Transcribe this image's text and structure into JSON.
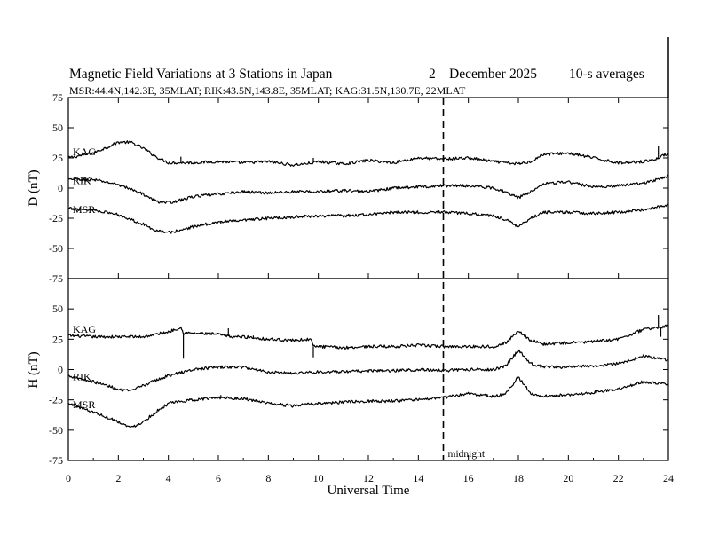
{
  "chart_data": {
    "type": "line",
    "title": {
      "main": "Magnetic Field Variations at 3 Stations in Japan",
      "day": "2",
      "month": "December",
      "year": "2025",
      "averaging": "10-s averages"
    },
    "subtitle": "MSR:44.4N,142.3E, 35MLAT;  RIK:43.5N,143.8E, 35MLAT;  KAG:31.5N,130.7E, 22MLAT",
    "xlabel": "Universal Time",
    "xlim": [
      0,
      24
    ],
    "x_ticks": [
      "0",
      "2",
      "4",
      "6",
      "8",
      "10",
      "12",
      "14",
      "16",
      "18",
      "20",
      "22",
      "24"
    ],
    "midnight_label": "midnight",
    "midnight_ut": 15,
    "panels": [
      {
        "name": "D",
        "ylabel": "D (nT)",
        "ylim": [
          -75,
          75
        ],
        "y_ticks": [
          "75",
          "50",
          "25",
          "0",
          "-25",
          "-50",
          "-75"
        ],
        "series": [
          {
            "name": "KAG",
            "points": [
              [
                0,
                25
              ],
              [
                1,
                29
              ],
              [
                2,
                38
              ],
              [
                2.5,
                38
              ],
              [
                3,
                33
              ],
              [
                3.5,
                26
              ],
              [
                4,
                21
              ],
              [
                4.5,
                21
              ],
              [
                5,
                21
              ],
              [
                6,
                22
              ],
              [
                7,
                21
              ],
              [
                8,
                22
              ],
              [
                9,
                19
              ],
              [
                9.8,
                21
              ],
              [
                10,
                22
              ],
              [
                11,
                20
              ],
              [
                12,
                23
              ],
              [
                13,
                21
              ],
              [
                14,
                25
              ],
              [
                15,
                24
              ],
              [
                16,
                25
              ],
              [
                17,
                22
              ],
              [
                18,
                20
              ],
              [
                18.5,
                22
              ],
              [
                19,
                28
              ],
              [
                20,
                29
              ],
              [
                21,
                25
              ],
              [
                22,
                21
              ],
              [
                23,
                22
              ],
              [
                23.5,
                24
              ],
              [
                24,
                29
              ]
            ],
            "spikes": [
              [
                4.5,
                26
              ],
              [
                9.8,
                25
              ],
              [
                23.6,
                35
              ]
            ]
          },
          {
            "name": "RIK",
            "points": [
              [
                0,
                7
              ],
              [
                1,
                7
              ],
              [
                2,
                3
              ],
              [
                3,
                -5
              ],
              [
                3.5,
                -11
              ],
              [
                4,
                -12
              ],
              [
                4.5,
                -10
              ],
              [
                5,
                -7
              ],
              [
                6,
                -5
              ],
              [
                7,
                -3
              ],
              [
                8,
                -4
              ],
              [
                9,
                -3
              ],
              [
                10,
                -3
              ],
              [
                11,
                -2
              ],
              [
                12,
                -3
              ],
              [
                13,
                0
              ],
              [
                14,
                1
              ],
              [
                15,
                2
              ],
              [
                16,
                2
              ],
              [
                17,
                0
              ],
              [
                17.5,
                -3
              ],
              [
                18,
                -8
              ],
              [
                18.5,
                -3
              ],
              [
                19,
                4
              ],
              [
                20,
                5
              ],
              [
                21,
                1
              ],
              [
                22,
                2
              ],
              [
                23,
                4
              ],
              [
                24,
                10
              ]
            ],
            "spikes": []
          },
          {
            "name": "MSR",
            "points": [
              [
                0,
                -17
              ],
              [
                1,
                -18
              ],
              [
                2,
                -22
              ],
              [
                3,
                -30
              ],
              [
                3.5,
                -35
              ],
              [
                4,
                -37
              ],
              [
                4.5,
                -35
              ],
              [
                5,
                -32
              ],
              [
                6,
                -28
              ],
              [
                7,
                -27
              ],
              [
                8,
                -25
              ],
              [
                9,
                -24
              ],
              [
                10,
                -23
              ],
              [
                11,
                -23
              ],
              [
                12,
                -22
              ],
              [
                13,
                -20
              ],
              [
                14,
                -20
              ],
              [
                15,
                -20
              ],
              [
                16,
                -21
              ],
              [
                17,
                -23
              ],
              [
                17.5,
                -26
              ],
              [
                18,
                -32
              ],
              [
                18.5,
                -25
              ],
              [
                19,
                -20
              ],
              [
                20,
                -20
              ],
              [
                21,
                -21
              ],
              [
                22,
                -20
              ],
              [
                23,
                -18
              ],
              [
                24,
                -14
              ]
            ],
            "spikes": [
              [
                6.1,
                -30
              ]
            ]
          }
        ]
      },
      {
        "name": "H",
        "ylabel": "H (nT)",
        "ylim": [
          -75,
          75
        ],
        "y_ticks": [
          "50",
          "25",
          "0",
          "-25",
          "-50",
          "-75"
        ],
        "series": [
          {
            "name": "KAG",
            "points": [
              [
                0,
                28
              ],
              [
                1,
                27
              ],
              [
                2,
                27
              ],
              [
                3,
                27
              ],
              [
                4,
                31
              ],
              [
                4.5,
                35
              ],
              [
                4.6,
                30
              ],
              [
                5,
                30
              ],
              [
                6,
                29
              ],
              [
                6.5,
                27
              ],
              [
                7,
                27
              ],
              [
                8,
                25
              ],
              [
                9,
                24
              ],
              [
                9.7,
                25
              ],
              [
                9.8,
                19
              ],
              [
                10,
                19
              ],
              [
                11,
                18
              ],
              [
                12,
                19
              ],
              [
                13,
                19
              ],
              [
                14,
                20
              ],
              [
                15,
                19
              ],
              [
                16,
                19
              ],
              [
                17,
                19
              ],
              [
                17.5,
                22
              ],
              [
                18,
                32
              ],
              [
                18.5,
                24
              ],
              [
                19,
                21
              ],
              [
                20,
                22
              ],
              [
                21,
                23
              ],
              [
                22,
                25
              ],
              [
                23,
                33
              ],
              [
                24,
                36
              ]
            ],
            "spikes": [
              [
                4.6,
                9
              ],
              [
                6.4,
                34
              ],
              [
                7.4,
                28
              ],
              [
                9.8,
                10
              ],
              [
                23.6,
                45
              ],
              [
                23.7,
                27
              ]
            ]
          },
          {
            "name": "RIK",
            "points": [
              [
                0,
                -5
              ],
              [
                1,
                -10
              ],
              [
                2,
                -16
              ],
              [
                2.5,
                -18
              ],
              [
                3,
                -13
              ],
              [
                4,
                -5
              ],
              [
                5,
                0
              ],
              [
                6,
                2
              ],
              [
                7,
                2
              ],
              [
                8,
                -2
              ],
              [
                9,
                -3
              ],
              [
                10,
                -2
              ],
              [
                11,
                -2
              ],
              [
                12,
                -1
              ],
              [
                13,
                -1
              ],
              [
                14,
                0
              ],
              [
                15,
                -1
              ],
              [
                16,
                0
              ],
              [
                17,
                0
              ],
              [
                17.5,
                3
              ],
              [
                18,
                16
              ],
              [
                18.5,
                5
              ],
              [
                19,
                2
              ],
              [
                20,
                2
              ],
              [
                21,
                3
              ],
              [
                22,
                5
              ],
              [
                23,
                11
              ],
              [
                24,
                8
              ]
            ],
            "spikes": []
          },
          {
            "name": "MSR",
            "points": [
              [
                0,
                -28
              ],
              [
                1,
                -35
              ],
              [
                2,
                -43
              ],
              [
                2.5,
                -48
              ],
              [
                3,
                -43
              ],
              [
                3.5,
                -35
              ],
              [
                4,
                -28
              ],
              [
                5,
                -25
              ],
              [
                6,
                -23
              ],
              [
                7,
                -24
              ],
              [
                8,
                -28
              ],
              [
                9,
                -30
              ],
              [
                10,
                -28
              ],
              [
                11,
                -27
              ],
              [
                12,
                -26
              ],
              [
                13,
                -26
              ],
              [
                14,
                -25
              ],
              [
                15,
                -23
              ],
              [
                16,
                -20
              ],
              [
                17,
                -22
              ],
              [
                17.5,
                -20
              ],
              [
                18,
                -6
              ],
              [
                18.5,
                -20
              ],
              [
                19,
                -22
              ],
              [
                20,
                -21
              ],
              [
                21,
                -19
              ],
              [
                22,
                -16
              ],
              [
                23,
                -10
              ],
              [
                24,
                -12
              ]
            ],
            "spikes": [
              [
                6.1,
                -21
              ]
            ]
          }
        ]
      }
    ]
  }
}
